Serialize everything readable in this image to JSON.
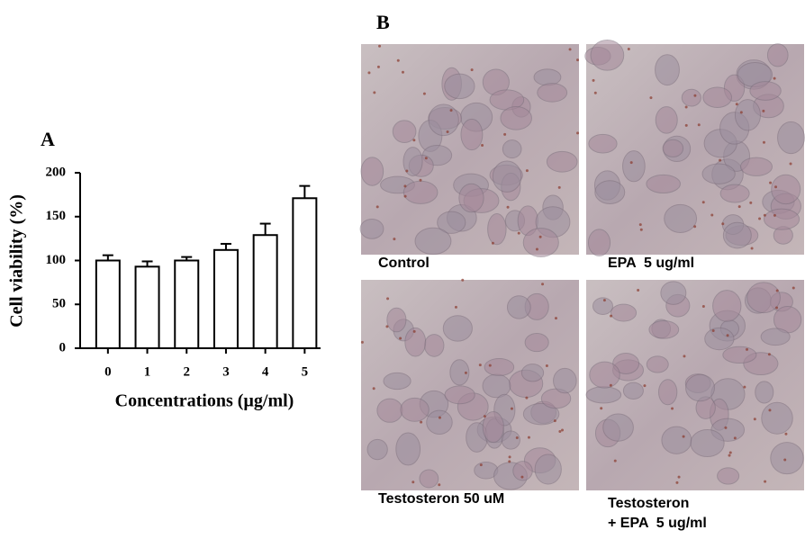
{
  "chart_data": {
    "type": "bar",
    "panel_label": "A",
    "ylabel": "Cell viability (%)",
    "xlabel": "Concentrations (µg/ml)",
    "categories": [
      "0",
      "1",
      "2",
      "3",
      "4",
      "5"
    ],
    "values": [
      100,
      93,
      100,
      112,
      129,
      171
    ],
    "errors": [
      6,
      6,
      4,
      7,
      13,
      14
    ],
    "color": "#ffffff",
    "ylim": [
      0,
      200
    ],
    "yticks": [
      0,
      50,
      100,
      150,
      200
    ]
  },
  "panel_b": {
    "label": "B",
    "images": [
      {
        "caption": [
          "Control"
        ]
      },
      {
        "caption": [
          "EPA  5 ug/ml"
        ]
      },
      {
        "caption": [
          "Testosteron 50 uM"
        ]
      },
      {
        "caption": [
          "Testosteron",
          "+ EPA  5 ug/ml"
        ]
      }
    ]
  }
}
